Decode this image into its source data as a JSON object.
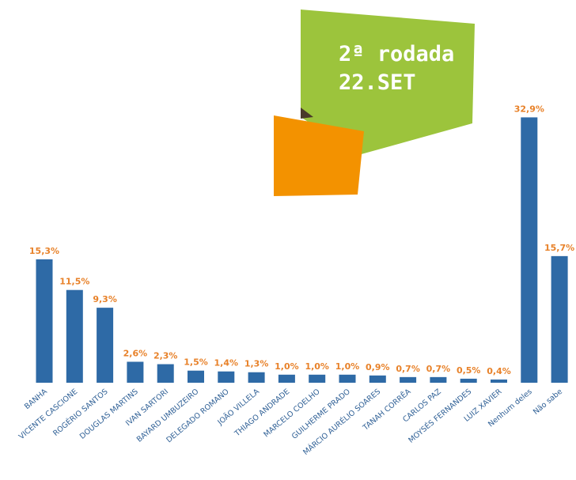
{
  "chart_data": {
    "type": "bar",
    "annotations": [
      "2ª rodada",
      "22.SET"
    ],
    "categories": [
      "BANHA",
      "VICENTE CASCIONE",
      "ROGÉRIO SANTOS",
      "DOUGLAS MARTINS",
      "IVAN SARTORI",
      "BAYARD UMBUZEIRO",
      "DELEGADO ROMANO",
      "JOÃO VILLELA",
      "THIAGO ANDRADE",
      "MARCELO COELHO",
      "GUILHERME PRADO",
      "MÁRCIO AURÉLIO SOARES",
      "TANAH CORRÊA",
      "CARLOS PAZ",
      "MOYSÉS FERNANDES",
      "LUIZ XAVIER",
      "Nenhum deles",
      "Não sabe"
    ],
    "values": [
      15.3,
      11.5,
      9.3,
      2.6,
      2.3,
      1.5,
      1.4,
      1.3,
      1.0,
      1.0,
      1.0,
      0.9,
      0.7,
      0.7,
      0.5,
      0.4,
      32.9,
      15.7
    ],
    "value_labels": [
      "15,3%",
      "11,5%",
      "9,3%",
      "2,6%",
      "2,3%",
      "1,5%",
      "1,4%",
      "1,3%",
      "1,0%",
      "1,0%",
      "1,0%",
      "0,9%",
      "0,7%",
      "0,7%",
      "0,5%",
      "0,4%",
      "32,9%",
      "15,7%"
    ],
    "color": "#2e6aa6",
    "ylim": [
      0,
      35
    ]
  }
}
